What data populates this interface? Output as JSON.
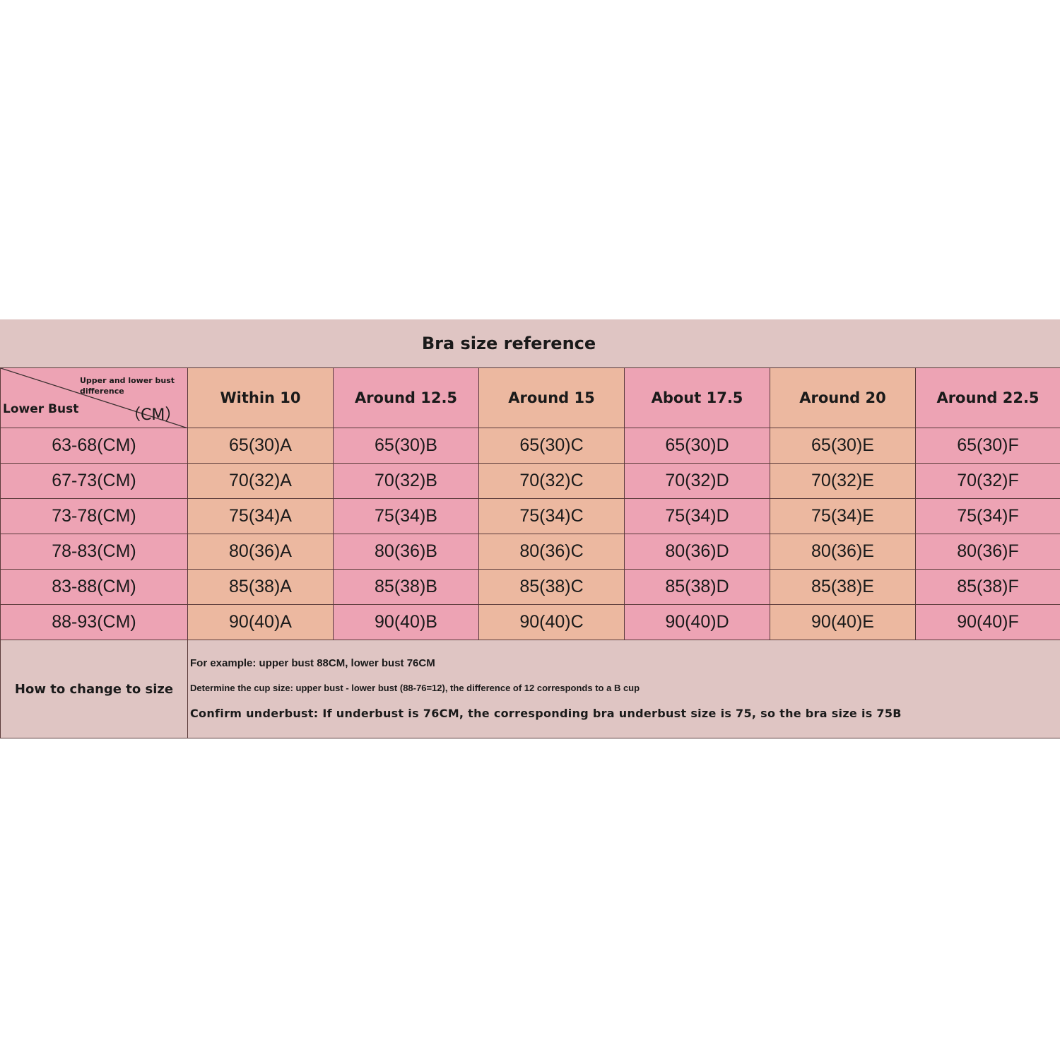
{
  "title": "Bra size reference",
  "corner": {
    "top": "Upper and lower bust difference",
    "left": "Lower Bust",
    "unit": "（CM）"
  },
  "columns": [
    "Within 10",
    "Around 12.5",
    "Around 15",
    "About 17.5",
    "Around 20",
    "Around 22.5"
  ],
  "rows": [
    {
      "label": "63-68(CM)",
      "cells": [
        "65(30)A",
        "65(30)B",
        "65(30)C",
        "65(30)D",
        "65(30)E",
        "65(30)F"
      ]
    },
    {
      "label": "67-73(CM)",
      "cells": [
        "70(32)A",
        "70(32)B",
        "70(32)C",
        "70(32)D",
        "70(32)E",
        "70(32)F"
      ]
    },
    {
      "label": "73-78(CM)",
      "cells": [
        "75(34)A",
        "75(34)B",
        "75(34)C",
        "75(34)D",
        "75(34)E",
        "75(34)F"
      ]
    },
    {
      "label": "78-83(CM)",
      "cells": [
        "80(36)A",
        "80(36)B",
        "80(36)C",
        "80(36)D",
        "80(36)E",
        "80(36)F"
      ]
    },
    {
      "label": "83-88(CM)",
      "cells": [
        "85(38)A",
        "85(38)B",
        "85(38)C",
        "85(38)D",
        "85(38)E",
        "85(38)F"
      ]
    },
    {
      "label": "88-93(CM)",
      "cells": [
        "90(40)A",
        "90(40)B",
        "90(40)C",
        "90(40)D",
        "90(40)E",
        "90(40)F"
      ]
    }
  ],
  "footer": {
    "label": "How to change to size",
    "lines": [
      "For example: upper bust 88CM, lower bust 76CM",
      "Determine the cup size: upper bust - lower bust (88-76=12), the difference of 12 corresponds to a B cup",
      "Confirm underbust: If underbust is 76CM, the corresponding bra underbust size is 75, so the bra size is 75B"
    ]
  },
  "colors": {
    "pink": "#eda3b4",
    "peach": "#ecb8a0",
    "title_bg": "#dfc5c3"
  }
}
